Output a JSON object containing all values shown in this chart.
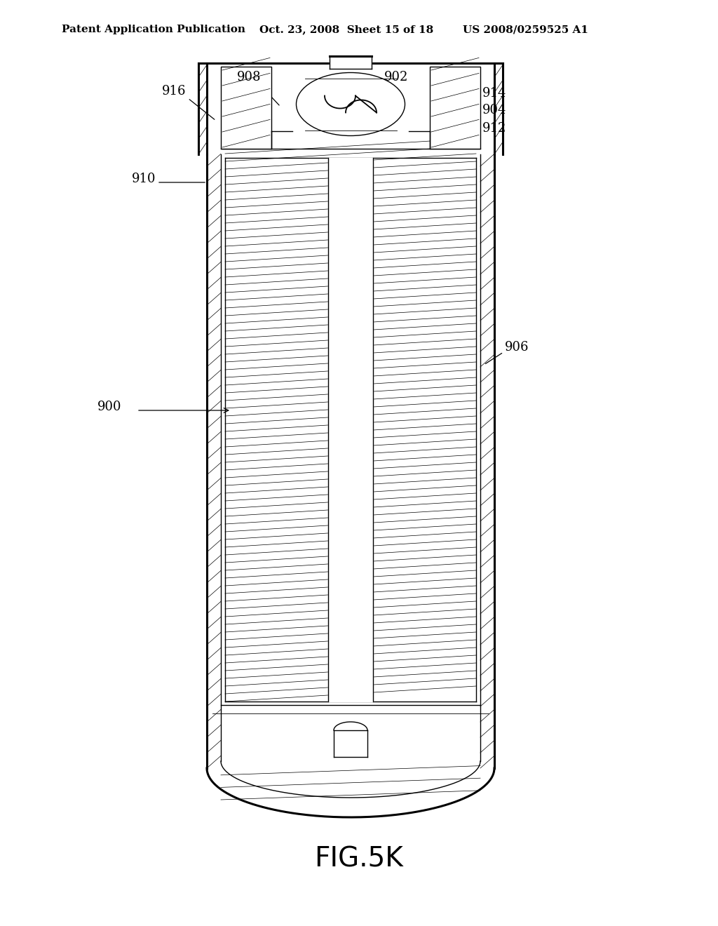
{
  "bg_color": "#ffffff",
  "line_color": "#000000",
  "title_text1": "Patent Application Publication",
  "title_text2": "Oct. 23, 2008  Sheet 15 of 18",
  "title_text3": "US 2008/0259525 A1",
  "fig_label": "FIG.5K"
}
